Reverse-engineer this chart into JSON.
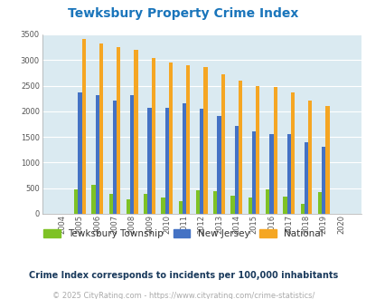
{
  "title": "Tewksbury Property Crime Index",
  "years": [
    "2004",
    "2005",
    "2006",
    "2007",
    "2008",
    "2009",
    "2010",
    "2011",
    "2012",
    "2013",
    "2014",
    "2015",
    "2016",
    "2017",
    "2018",
    "2019",
    "2020"
  ],
  "tewksbury": [
    0,
    470,
    570,
    380,
    290,
    380,
    310,
    250,
    450,
    440,
    360,
    310,
    470,
    340,
    200,
    430,
    0
  ],
  "new_jersey": [
    0,
    2360,
    2310,
    2200,
    2320,
    2060,
    2060,
    2150,
    2050,
    1900,
    1720,
    1610,
    1550,
    1550,
    1400,
    1310,
    0
  ],
  "national": [
    0,
    3415,
    3330,
    3250,
    3190,
    3040,
    2955,
    2905,
    2860,
    2730,
    2590,
    2500,
    2470,
    2370,
    2210,
    2110,
    0
  ],
  "tewksbury_color": "#7ec225",
  "nj_color": "#4472c4",
  "national_color": "#f5a623",
  "bg_color": "#daeaf1",
  "ylim": [
    0,
    3500
  ],
  "yticks": [
    0,
    500,
    1000,
    1500,
    2000,
    2500,
    3000,
    3500
  ],
  "legend_labels": [
    "Tewksbury Township",
    "New Jersey",
    "National"
  ],
  "footnote1": "Crime Index corresponds to incidents per 100,000 inhabitants",
  "footnote2": "© 2025 CityRating.com - https://www.cityrating.com/crime-statistics/",
  "title_color": "#1a75bb",
  "footnote1_color": "#1a3a5c",
  "footnote2_color": "#aaaaaa",
  "bar_width": 0.22,
  "figsize": [
    4.06,
    3.3
  ],
  "dpi": 100
}
